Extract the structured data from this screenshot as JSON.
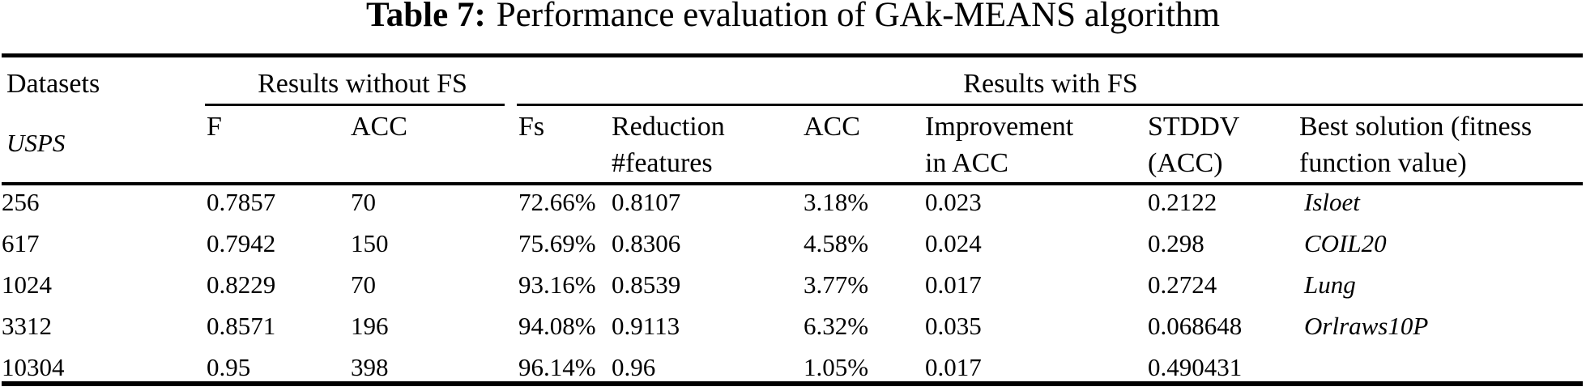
{
  "colors": {
    "text": "#000000",
    "background": "#ffffff",
    "rule": "#000000"
  },
  "caption": {
    "label": "Table 7:",
    "text": "Performance evaluation of GAk-MEANS algorithm"
  },
  "table": {
    "corner_header": "Datasets",
    "group_without_fs": "Results without FS",
    "group_with_fs": "Results with FS",
    "subheaders": {
      "f": "F",
      "acc_without": "ACC",
      "fs": "Fs",
      "reduction_line1": "Reduction",
      "reduction_line2": "#features",
      "acc_with": "ACC",
      "improvement_line1": "Improvement",
      "improvement_line2": "in ACC",
      "stddv_line1": "STDDV",
      "stddv_line2": "(ACC)",
      "best_line1": "Best solution (fitness",
      "best_line2": "function value)"
    },
    "rows": [
      {
        "dataset": "USPS",
        "f": "256",
        "acc_without": "0.7857",
        "fs": "70",
        "reduction": "72.66%",
        "acc_with": "0.8107",
        "improvement": "3.18%",
        "stddv": "0.023",
        "best": "0.2122"
      },
      {
        "dataset": "Isloet",
        "f": "617",
        "acc_without": "0.7942",
        "fs": "150",
        "reduction": "75.69%",
        "acc_with": "0.8306",
        "improvement": "4.58%",
        "stddv": "0.024",
        "best": "0.298"
      },
      {
        "dataset": "COIL20",
        "f": "1024",
        "acc_without": "0.8229",
        "fs": "70",
        "reduction": "93.16%",
        "acc_with": "0.8539",
        "improvement": "3.77%",
        "stddv": "0.017",
        "best": "0.2724"
      },
      {
        "dataset": "Lung",
        "f": "3312",
        "acc_without": "0.8571",
        "fs": "196",
        "reduction": "94.08%",
        "acc_with": "0.9113",
        "improvement": "6.32%",
        "stddv": "0.035",
        "best": "0.068648"
      },
      {
        "dataset": "Orlraws10P",
        "f": "10304",
        "acc_without": "0.95",
        "fs": "398",
        "reduction": "96.14%",
        "acc_with": "0.96",
        "improvement": "1.05%",
        "stddv": "0.017",
        "best": "0.490431"
      }
    ]
  }
}
